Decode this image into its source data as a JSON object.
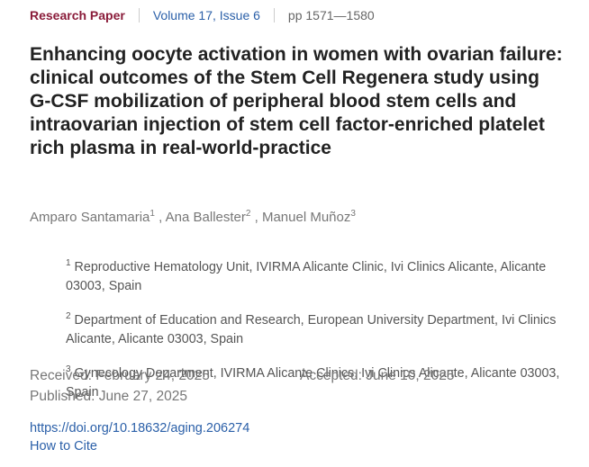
{
  "header": {
    "article_type": "Research Paper",
    "volume": "Volume 17, Issue 6",
    "pages": "pp 1571—1580"
  },
  "title": "Enhancing oocyte activation in women with ovarian failure: clinical outcomes of the Stem Cell Regenera study using G-CSF mobilization of peripheral blood stem cells and intraovarian injection of stem cell factor-enriched platelet rich plasma in real-world-practice",
  "author_separator": ",",
  "authors": [
    {
      "name": "Amparo Santamaria",
      "affiliation": "1"
    },
    {
      "name": "Ana Ballester",
      "affiliation": "2"
    },
    {
      "name": "Manuel Muñoz",
      "affiliation": "3"
    }
  ],
  "affiliations": [
    {
      "number": "1",
      "text": "Reproductive Hematology Unit, IVIRMA Alicante Clinic, Ivi Clinics Alicante, Alicante 03003, Spain"
    },
    {
      "number": "2",
      "text": "Department of Education and Research, European University Department, Ivi Clinics Alicante, Alicante 03003, Spain"
    },
    {
      "number": "3",
      "text": "Gynecology Department, IVIRMA Alicante Clinics, Ivi Clinics Alicante, Alicante 03003, Spain"
    }
  ],
  "dates": {
    "received": "Received: February 24, 2025",
    "accepted": "Accepted: June 10, 2025",
    "published": "Published: June 27, 2025"
  },
  "doi": "https://doi.org/10.18632/aging.206274",
  "how_to_cite": "How to Cite"
}
